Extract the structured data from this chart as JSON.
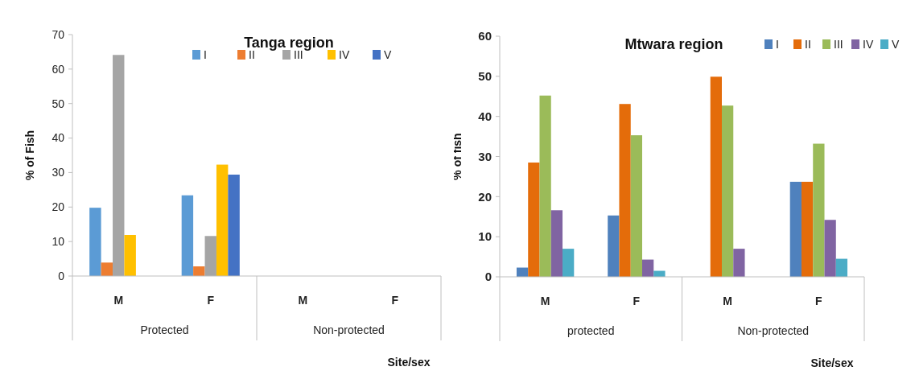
{
  "chart_data": [
    {
      "type": "bar",
      "title": "Tanga region",
      "xlabel": "Site/sex",
      "ylabel": "% of Fish",
      "categories": [
        "M",
        "F",
        "M",
        "F"
      ],
      "annotations": [
        "Protected",
        "Non-protected"
      ],
      "ylim": [
        0,
        70
      ],
      "yticks": [
        0,
        10,
        20,
        30,
        40,
        50,
        60,
        70
      ],
      "legend": "top",
      "series": [
        {
          "name": "I",
          "color": "#5b9bd5",
          "values": [
            19.8,
            23.4,
            null,
            null
          ]
        },
        {
          "name": "II",
          "color": "#ed7d31",
          "values": [
            3.9,
            2.8,
            null,
            null
          ]
        },
        {
          "name": "III",
          "color": "#a5a5a5",
          "values": [
            64.1,
            11.6,
            null,
            null
          ]
        },
        {
          "name": "IV",
          "color": "#ffc000",
          "values": [
            11.9,
            32.3,
            null,
            null
          ]
        },
        {
          "name": "V",
          "color": "#4472c4",
          "values": [
            null,
            29.4,
            null,
            null
          ]
        }
      ]
    },
    {
      "type": "bar",
      "title": "Mtwara region",
      "xlabel": "Site/sex",
      "ylabel": "% of fish",
      "categories": [
        "M",
        "F",
        "M",
        "F"
      ],
      "annotations": [
        "protected",
        "Non-protected"
      ],
      "ylim": [
        0,
        60
      ],
      "yticks": [
        0,
        10,
        20,
        30,
        40,
        50,
        60
      ],
      "legend": "top right",
      "series": [
        {
          "name": "I",
          "color": "#4f81bd",
          "values": [
            2.3,
            15.3,
            null,
            23.7
          ]
        },
        {
          "name": "II",
          "color": "#e46c0a",
          "values": [
            28.5,
            43.1,
            49.9,
            23.7
          ]
        },
        {
          "name": "III",
          "color": "#9bbb59",
          "values": [
            45.2,
            35.3,
            42.7,
            33.2
          ]
        },
        {
          "name": "IV",
          "color": "#8064a2",
          "values": [
            16.6,
            4.3,
            7.0,
            14.2
          ]
        },
        {
          "name": "V",
          "color": "#4bacc6",
          "values": [
            7.0,
            1.5,
            null,
            4.5
          ]
        }
      ]
    }
  ]
}
